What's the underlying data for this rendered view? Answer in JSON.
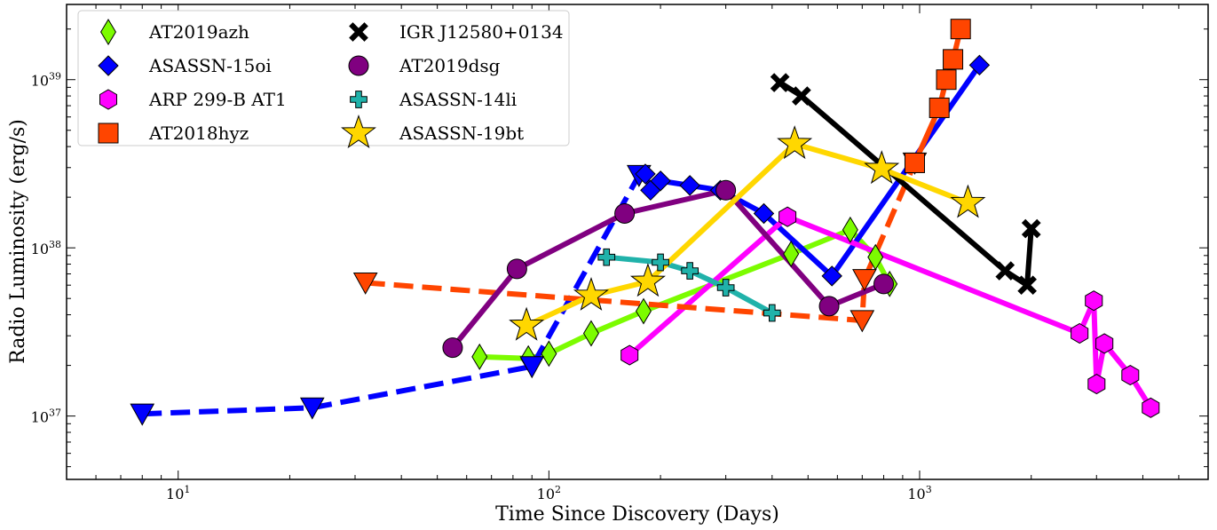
{
  "chart_data": {
    "type": "line",
    "xlabel": "Time Since Discovery (Days)",
    "ylabel": "Radio Luminosity (erg/s)",
    "xscale": "log",
    "yscale": "log",
    "xlim": [
      5,
      6000
    ],
    "ylim": [
      4.2e+36,
      2.8e+39
    ],
    "xticks": [
      {
        "value": 10,
        "base": "10",
        "exp": "1"
      },
      {
        "value": 100,
        "base": "10",
        "exp": "2"
      },
      {
        "value": 1000,
        "base": "10",
        "exp": "3"
      }
    ],
    "yticks": [
      {
        "value": 1e+37,
        "base": "10",
        "exp": "37"
      },
      {
        "value": 1e+38,
        "base": "10",
        "exp": "38"
      },
      {
        "value": 1e+39,
        "base": "10",
        "exp": "39"
      }
    ],
    "legend": {
      "position": "top-left",
      "columns": 2
    },
    "series": [
      {
        "name": "AT2019azh",
        "color": "#7cfc00",
        "marker": "thin-diamond",
        "segments": [
          {
            "style": "solid",
            "points": [
              [
                65,
                2.25e+37
              ],
              [
                88,
                2.2e+37
              ],
              [
                100,
                2.35e+37
              ],
              [
                130,
                3.1e+37
              ],
              [
                180,
                4.2e+37
              ],
              [
                450,
                9.2e+37
              ],
              [
                650,
                1.28e+38
              ],
              [
                760,
                8.8e+37
              ],
              [
                830,
                6.1e+37
              ]
            ]
          }
        ]
      },
      {
        "name": "ASASSN-15oi",
        "color": "#0000ff",
        "marker": "diamond",
        "segments": [
          {
            "style": "dashed",
            "points": [
              [
                8,
                1.03e+37
              ],
              [
                23,
                1.12e+37
              ],
              [
                90,
                1.97e+37
              ],
              [
                175,
                2.7e+38
              ]
            ]
          },
          {
            "style": "solid",
            "points": [
              [
                182,
                2.75e+38
              ],
              [
                188,
                2.2e+38
              ],
              [
                200,
                2.5e+38
              ],
              [
                240,
                2.35e+38
              ],
              [
                290,
                2.2e+38
              ],
              [
                380,
                1.6e+38
              ],
              [
                580,
                6.8e+37
              ],
              [
                1450,
                1.22e+39
              ]
            ]
          }
        ]
      },
      {
        "name": "ARP 299-B AT1",
        "color": "#ff00ff",
        "marker": "hexagon",
        "segments": [
          {
            "style": "solid",
            "points": [
              [
                165,
                2.3e+37
              ],
              [
                440,
                1.53e+38
              ],
              [
                2700,
                3.1e+37
              ],
              [
                2950,
                4.85e+37
              ],
              [
                3000,
                1.55e+37
              ],
              [
                3150,
                2.7e+37
              ],
              [
                3700,
                1.75e+37
              ],
              [
                4200,
                1.12e+37
              ]
            ]
          }
        ]
      },
      {
        "name": "AT2018hyz",
        "color": "#ff4500",
        "marker": "square",
        "segments": [
          {
            "style": "dashed",
            "points": [
              [
                32,
                6.2e+37
              ],
              [
                700,
                3.7e+37
              ],
              [
                710,
                6.5e+37
              ],
              [
                970,
                3.2e+38
              ]
            ]
          },
          {
            "style": "solid",
            "points": [
              [
                970,
                3.2e+38
              ],
              [
                1130,
                6.8e+38
              ],
              [
                1180,
                1e+39
              ],
              [
                1230,
                1.32e+39
              ],
              [
                1290,
                2e+39
              ]
            ]
          }
        ]
      },
      {
        "name": "IGR J12580+0134",
        "color": "#000000",
        "marker": "x",
        "segments": [
          {
            "style": "solid",
            "points": [
              [
                420,
                9.6e+38
              ],
              [
                480,
                8e+38
              ],
              [
                1700,
                7.3e+37
              ],
              [
                1950,
                6e+37
              ],
              [
                2000,
                1.3e+38
              ]
            ]
          }
        ]
      },
      {
        "name": "AT2019dsg",
        "color": "#800080",
        "marker": "circle",
        "segments": [
          {
            "style": "solid",
            "points": [
              [
                55,
                2.55e+37
              ],
              [
                82,
                7.5e+37
              ],
              [
                160,
                1.6e+38
              ],
              [
                300,
                2.2e+38
              ],
              [
                570,
                4.5e+37
              ],
              [
                800,
                6.1e+37
              ]
            ]
          }
        ]
      },
      {
        "name": "ASASSN-14li",
        "color": "#20b2aa",
        "marker": "plus",
        "segments": [
          {
            "style": "solid",
            "points": [
              [
                143,
                8.8e+37
              ],
              [
                200,
                8.2e+37
              ],
              [
                240,
                7.3e+37
              ],
              [
                300,
                5.8e+37
              ],
              [
                400,
                4.1e+37
              ]
            ]
          }
        ]
      },
      {
        "name": "ASASSN-19bt",
        "color": "#ffd700",
        "marker": "star",
        "segments": [
          {
            "style": "solid",
            "points": [
              [
                87,
                3.45e+37
              ],
              [
                130,
                5.2e+37
              ],
              [
                185,
                6.3e+37
              ],
              [
                460,
                4.15e+38
              ],
              [
                790,
                2.95e+38
              ],
              [
                1350,
                1.85e+38
              ]
            ]
          }
        ]
      }
    ]
  }
}
